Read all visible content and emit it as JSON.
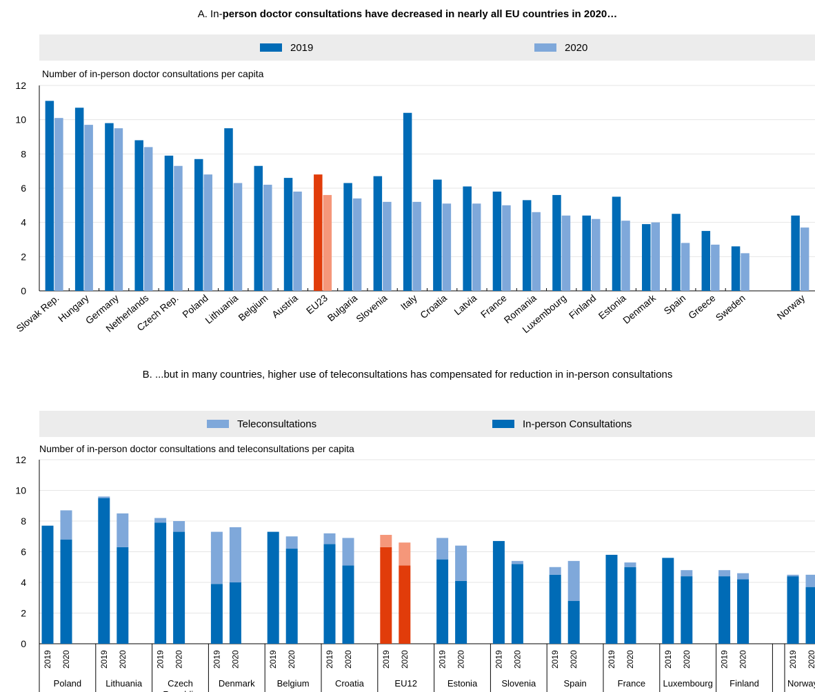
{
  "colors": {
    "y2019": "#006bb6",
    "y2020": "#7fa8da",
    "eu2019": "#e13c0a",
    "eu2020": "#f5977a",
    "grid": "#e5e5e5",
    "legend_bg": "#ececec"
  },
  "panelA": {
    "title_prefix": "A. In-",
    "title_bold": "person doctor consultations have decreased in nearly all EU countries in 2020…",
    "legend": [
      "2019",
      "2020"
    ],
    "ylabel": "Number of in-person doctor consultations per capita"
  },
  "panelB": {
    "title": "B. ...but in many countries, higher use of teleconsultations has compensated for reduction in in-person consultations",
    "legend": [
      "Teleconsultations",
      "In-person Consultations"
    ],
    "ylabel": "Number of in-person doctor consultations and teleconsultations per capita"
  },
  "chart_data": [
    {
      "type": "bar",
      "title": "A. In-person doctor consultations have decreased in nearly all EU countries in 2020…",
      "ylabel": "Number of in-person doctor consultations per capita",
      "ylim": [
        0,
        12
      ],
      "yticks": [
        0,
        2,
        4,
        6,
        8,
        10,
        12
      ],
      "grid": true,
      "legend_position": "top",
      "highlight": "EU23",
      "categories": [
        "Slovak Rep.",
        "Hungary",
        "Germany",
        "Netherlands",
        "Czech Rep.",
        "Poland",
        "Lithuania",
        "Belgium",
        "Austria",
        "EU23",
        "Bulgaria",
        "Slovenia",
        "Italy",
        "Croatia",
        "Latvia",
        "France",
        "Romania",
        "Luxembourg",
        "Finland",
        "Estonia",
        "Denmark",
        "Spain",
        "Greece",
        "Sweden",
        "",
        "Norway"
      ],
      "series": [
        {
          "name": "2019",
          "values": [
            11.1,
            10.7,
            9.8,
            8.8,
            7.9,
            7.7,
            9.5,
            7.3,
            6.6,
            6.8,
            6.3,
            6.7,
            10.4,
            6.5,
            6.1,
            5.8,
            5.3,
            5.6,
            4.4,
            5.5,
            3.9,
            4.5,
            3.5,
            2.6,
            null,
            4.4
          ]
        },
        {
          "name": "2020",
          "values": [
            10.1,
            9.7,
            9.5,
            8.4,
            7.3,
            6.8,
            6.3,
            6.2,
            5.8,
            5.6,
            5.4,
            5.2,
            5.2,
            5.1,
            5.1,
            5.0,
            4.6,
            4.4,
            4.2,
            4.1,
            4.0,
            2.8,
            2.7,
            2.2,
            null,
            3.7
          ]
        }
      ]
    },
    {
      "type": "bar",
      "stacked": true,
      "title": "B. ...but in many countries, higher use of teleconsultations has compensated for reduction in in-person consultations",
      "ylabel": "Number of in-person doctor consultations and teleconsultations per capita",
      "ylim": [
        0,
        12
      ],
      "yticks": [
        0,
        2,
        4,
        6,
        8,
        10,
        12
      ],
      "grid": true,
      "legend_position": "top",
      "highlight": "EU12",
      "year_labels": [
        "2019",
        "2020"
      ],
      "groups": [
        {
          "name": "Poland",
          "in_person": [
            7.7,
            6.8
          ],
          "tele": [
            0.0,
            1.9
          ]
        },
        {
          "name": "Lithuania",
          "in_person": [
            9.5,
            6.3
          ],
          "tele": [
            0.1,
            2.2
          ]
        },
        {
          "name": "Czech Republic",
          "in_person": [
            7.9,
            7.3
          ],
          "tele": [
            0.3,
            0.7
          ]
        },
        {
          "name": "Denmark",
          "in_person": [
            3.9,
            4.0
          ],
          "tele": [
            3.4,
            3.6
          ]
        },
        {
          "name": "Belgium",
          "in_person": [
            7.3,
            6.2
          ],
          "tele": [
            0.0,
            0.8
          ]
        },
        {
          "name": "Croatia",
          "in_person": [
            6.5,
            5.1
          ],
          "tele": [
            0.7,
            1.8
          ]
        },
        {
          "name": "EU12",
          "in_person": [
            6.3,
            5.1
          ],
          "tele": [
            0.8,
            1.5
          ]
        },
        {
          "name": "Estonia",
          "in_person": [
            5.5,
            4.1
          ],
          "tele": [
            1.4,
            2.3
          ]
        },
        {
          "name": "Slovenia",
          "in_person": [
            6.7,
            5.2
          ],
          "tele": [
            0.0,
            0.2
          ]
        },
        {
          "name": "Spain",
          "in_person": [
            4.5,
            2.8
          ],
          "tele": [
            0.5,
            2.6
          ]
        },
        {
          "name": "France",
          "in_person": [
            5.8,
            5.0
          ],
          "tele": [
            0.0,
            0.3
          ]
        },
        {
          "name": "Luxembourg",
          "in_person": [
            5.6,
            4.4
          ],
          "tele": [
            0.0,
            0.4
          ]
        },
        {
          "name": "Finland",
          "in_person": [
            4.4,
            4.2
          ],
          "tele": [
            0.4,
            0.4
          ]
        },
        {
          "name": "Norway",
          "in_person": [
            4.4,
            3.7
          ],
          "tele": [
            0.1,
            0.8
          ]
        }
      ]
    }
  ]
}
